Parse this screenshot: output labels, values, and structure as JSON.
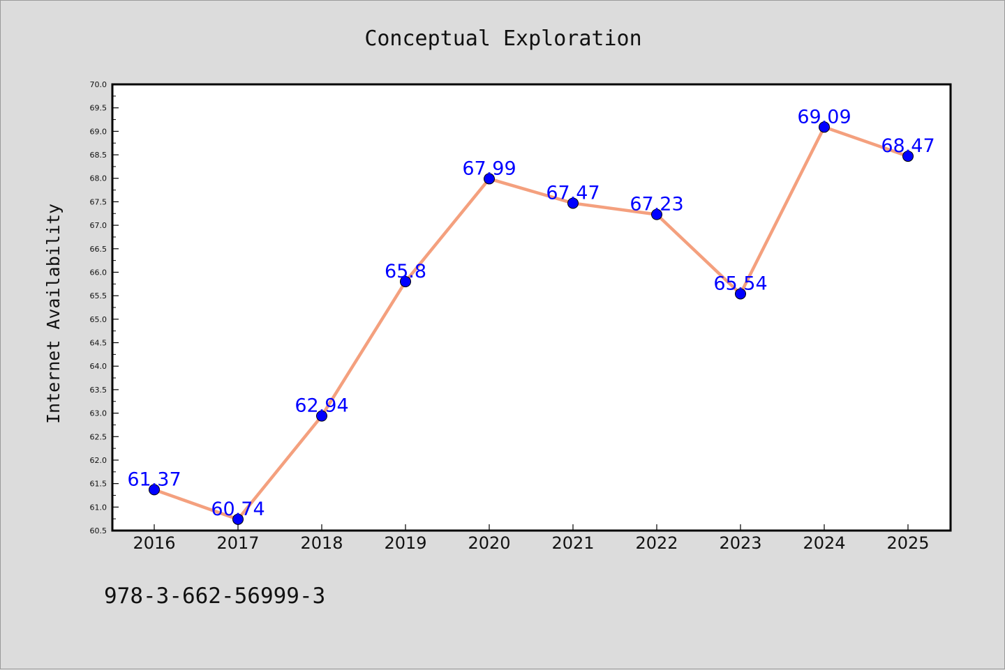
{
  "chart_data": {
    "type": "line",
    "title": "Conceptual Exploration",
    "xlabel": "",
    "ylabel": "Internet Availability",
    "categories": [
      "2016",
      "2017",
      "2018",
      "2019",
      "2020",
      "2021",
      "2022",
      "2023",
      "2024",
      "2025"
    ],
    "series": [
      {
        "values": [
          61.37,
          60.74,
          62.94,
          65.8,
          67.99,
          67.47,
          67.23,
          65.54,
          69.09,
          68.47
        ],
        "labels": [
          "61.37",
          "60.74",
          "62.94",
          "65.8",
          "67.99",
          "67.47",
          "67.23",
          "65.54",
          "69.09",
          "68.47"
        ],
        "line_color": "#f4a07e",
        "marker_color": "#0000ff",
        "label_color": "#0000ff"
      }
    ],
    "ylim": [
      60.5,
      70.0
    ],
    "yticks": [
      "60.5",
      "61.0",
      "61.5",
      "62.0",
      "62.5",
      "63.0",
      "63.5",
      "64.0",
      "64.5",
      "65.0",
      "65.5",
      "66.0",
      "66.5",
      "67.0",
      "67.5",
      "68.0",
      "68.5",
      "69.0",
      "69.5",
      "70.0"
    ],
    "ytick_values": [
      60.5,
      61.0,
      61.5,
      62.0,
      62.5,
      63.0,
      63.5,
      64.0,
      64.5,
      65.0,
      65.5,
      66.0,
      66.5,
      67.0,
      67.5,
      68.0,
      68.5,
      69.0,
      69.5,
      70.0
    ],
    "grid": false,
    "legend": "none",
    "annotation": "978-3-662-56999-3",
    "colors": {
      "background": "#dcdcdc",
      "plot_background": "#ffffff",
      "axes": "#000000"
    }
  }
}
